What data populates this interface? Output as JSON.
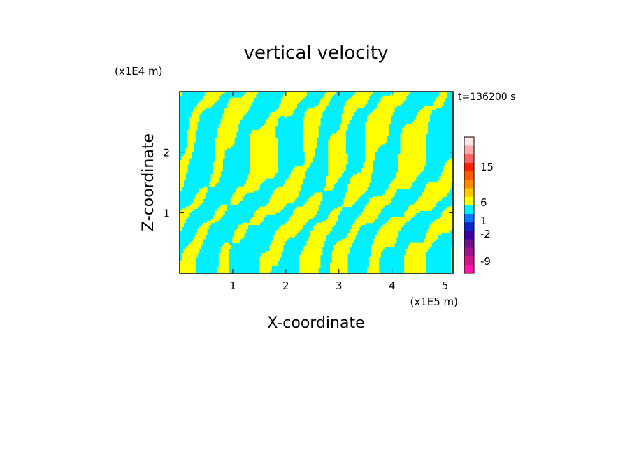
{
  "chart_data": {
    "type": "heatmap",
    "title": "vertical velocity",
    "xlabel": "X-coordinate",
    "ylabel": "Z-coordinate",
    "x_unit": "(x1E5 m)",
    "z_unit": "(x1E4 m)",
    "time_label": "t=136200 s",
    "xlim": [
      0,
      5.15
    ],
    "ylim": [
      0,
      3.0
    ],
    "x_ticks": [
      "1",
      "2",
      "3",
      "4",
      "5"
    ],
    "y_ticks": [
      "1",
      "2"
    ],
    "colorbar": {
      "labels": [
        "15",
        "6",
        "1",
        "-2",
        "-9"
      ],
      "levels": [
        {
          "color": "#ff14aa"
        },
        {
          "color": "#d2148c"
        },
        {
          "color": "#a0148c"
        },
        {
          "color": "#6e148c"
        },
        {
          "color": "#3c00a0"
        },
        {
          "color": "#0a28c8"
        },
        {
          "color": "#0a78ff"
        },
        {
          "color": "#00f0ff"
        },
        {
          "color": "#ffff00"
        },
        {
          "color": "#ffc800"
        },
        {
          "color": "#ff8c00"
        },
        {
          "color": "#ff5a00"
        },
        {
          "color": "#ff1e00"
        },
        {
          "color": "#ff6464"
        },
        {
          "color": "#ffaaaa"
        },
        {
          "color": "#ffe6e6"
        }
      ]
    },
    "dominant_colors": {
      "positive": "#ffff00",
      "negative": "#00f0ff"
    }
  }
}
